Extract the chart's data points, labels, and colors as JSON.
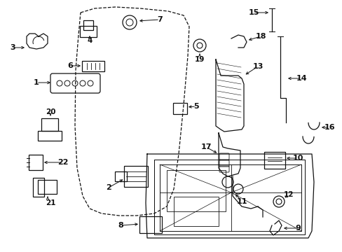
{
  "background_color": "#ffffff",
  "line_color": "#111111",
  "figsize": [
    4.89,
    3.6
  ],
  "dpi": 100,
  "lw": 0.9
}
